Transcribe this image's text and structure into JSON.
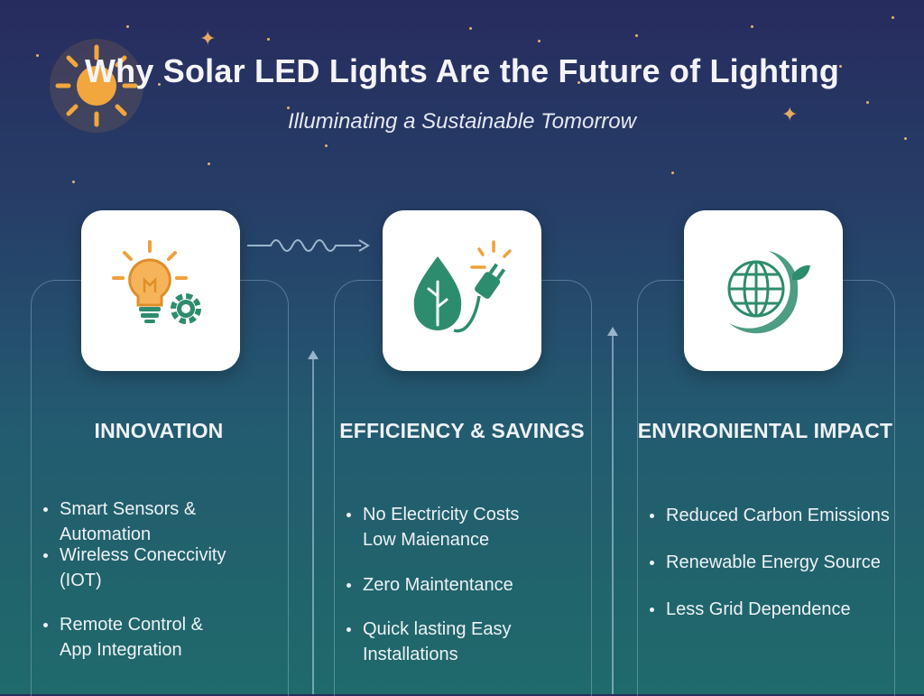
{
  "header": {
    "title": "Why Solar LED Lights Are the Future of Lighting",
    "subtitle": "Illuminating a Sustainable Tomorrow"
  },
  "icons": {
    "sun": "sun-icon",
    "col1": "lightbulb-gear-icon",
    "col2": "leaf-plug-icon",
    "col3": "globe-leaf-icon"
  },
  "colors": {
    "accent_orange": "#f0a03c",
    "accent_green": "#2e8c6e",
    "bg_top": "#272c5e",
    "bg_bottom": "#1f6a6a"
  },
  "columns": [
    {
      "heading": "INNOVATION",
      "bullets": [
        "Smart Sensors & Automation",
        "Wireless Coneccivity",
        "(IOT)",
        "Remote Control &",
        "App Integration"
      ]
    },
    {
      "heading": "EFFICIENCY & SAVINGS",
      "bullets": [
        "No Electricity Costs",
        "Low Maienance",
        "Zero Maintentance",
        "Quick lasting Easy Installations"
      ]
    },
    {
      "heading": "ENVIRONIENTAL IMPACT",
      "bullets": [
        "Reduced Carbon Emissions",
        "Renewable Energy Source",
        "Less Grid Dependence"
      ]
    }
  ]
}
